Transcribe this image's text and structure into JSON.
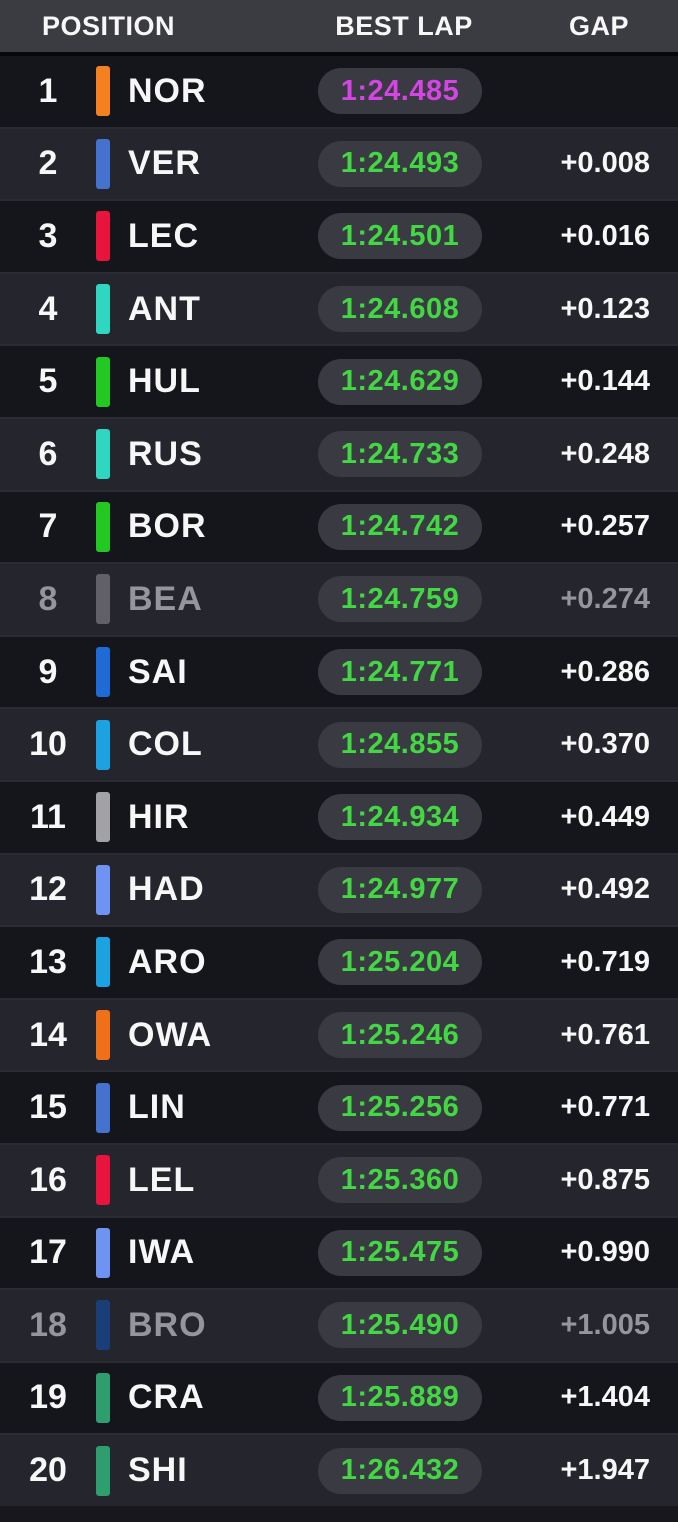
{
  "table": {
    "columns": {
      "position": "POSITION",
      "best_lap": "BEST LAP",
      "gap": "GAP"
    },
    "rows": [
      {
        "position": "1",
        "code": "NOR",
        "team_color": "#F58020",
        "best_lap": "1:24.485",
        "gap": "",
        "lap_highlight": "fastest",
        "dimmed": false
      },
      {
        "position": "2",
        "code": "VER",
        "team_color": "#4571CF",
        "best_lap": "1:24.493",
        "gap": "+0.008",
        "lap_highlight": "personal",
        "dimmed": false
      },
      {
        "position": "3",
        "code": "LEC",
        "team_color": "#E8143C",
        "best_lap": "1:24.501",
        "gap": "+0.016",
        "lap_highlight": "personal",
        "dimmed": false
      },
      {
        "position": "4",
        "code": "ANT",
        "team_color": "#2FD6C0",
        "best_lap": "1:24.608",
        "gap": "+0.123",
        "lap_highlight": "personal",
        "dimmed": false
      },
      {
        "position": "5",
        "code": "HUL",
        "team_color": "#23C823",
        "best_lap": "1:24.629",
        "gap": "+0.144",
        "lap_highlight": "personal",
        "dimmed": false
      },
      {
        "position": "6",
        "code": "RUS",
        "team_color": "#2FD6C0",
        "best_lap": "1:24.733",
        "gap": "+0.248",
        "lap_highlight": "personal",
        "dimmed": false
      },
      {
        "position": "7",
        "code": "BOR",
        "team_color": "#23C823",
        "best_lap": "1:24.742",
        "gap": "+0.257",
        "lap_highlight": "personal",
        "dimmed": false
      },
      {
        "position": "8",
        "code": "BEA",
        "team_color": "#606066",
        "best_lap": "1:24.759",
        "gap": "+0.274",
        "lap_highlight": "personal",
        "dimmed": true
      },
      {
        "position": "9",
        "code": "SAI",
        "team_color": "#1E6BD6",
        "best_lap": "1:24.771",
        "gap": "+0.286",
        "lap_highlight": "personal",
        "dimmed": false
      },
      {
        "position": "10",
        "code": "COL",
        "team_color": "#1CA2E0",
        "best_lap": "1:24.855",
        "gap": "+0.370",
        "lap_highlight": "personal",
        "dimmed": false
      },
      {
        "position": "11",
        "code": "HIR",
        "team_color": "#A2A2A6",
        "best_lap": "1:24.934",
        "gap": "+0.449",
        "lap_highlight": "personal",
        "dimmed": false
      },
      {
        "position": "12",
        "code": "HAD",
        "team_color": "#6E93F2",
        "best_lap": "1:24.977",
        "gap": "+0.492",
        "lap_highlight": "personal",
        "dimmed": false
      },
      {
        "position": "13",
        "code": "ARO",
        "team_color": "#1CA2E0",
        "best_lap": "1:25.204",
        "gap": "+0.719",
        "lap_highlight": "personal",
        "dimmed": false
      },
      {
        "position": "14",
        "code": "OWA",
        "team_color": "#EF7018",
        "best_lap": "1:25.246",
        "gap": "+0.761",
        "lap_highlight": "personal",
        "dimmed": false
      },
      {
        "position": "15",
        "code": "LIN",
        "team_color": "#4571CF",
        "best_lap": "1:25.256",
        "gap": "+0.771",
        "lap_highlight": "personal",
        "dimmed": false
      },
      {
        "position": "16",
        "code": "LEL",
        "team_color": "#E8143C",
        "best_lap": "1:25.360",
        "gap": "+0.875",
        "lap_highlight": "personal",
        "dimmed": false
      },
      {
        "position": "17",
        "code": "IWA",
        "team_color": "#6E93F2",
        "best_lap": "1:25.475",
        "gap": "+0.990",
        "lap_highlight": "personal",
        "dimmed": false
      },
      {
        "position": "18",
        "code": "BRO",
        "team_color": "#1A3F78",
        "best_lap": "1:25.490",
        "gap": "+1.005",
        "lap_highlight": "personal",
        "dimmed": true
      },
      {
        "position": "19",
        "code": "CRA",
        "team_color": "#2E9E6E",
        "best_lap": "1:25.889",
        "gap": "+1.404",
        "lap_highlight": "personal",
        "dimmed": false
      },
      {
        "position": "20",
        "code": "SHI",
        "team_color": "#2E9E6E",
        "best_lap": "1:26.432",
        "gap": "+1.947",
        "lap_highlight": "personal",
        "dimmed": false
      }
    ]
  },
  "colors": {
    "fastest_lap": "#D544E4",
    "personal_best": "#43D843",
    "header_bg": "#3B3B42",
    "row_dark": "#15151C",
    "row_light": "#25252E",
    "pill_bg": "#3A3A42",
    "dimmed_text": "#95969C"
  }
}
